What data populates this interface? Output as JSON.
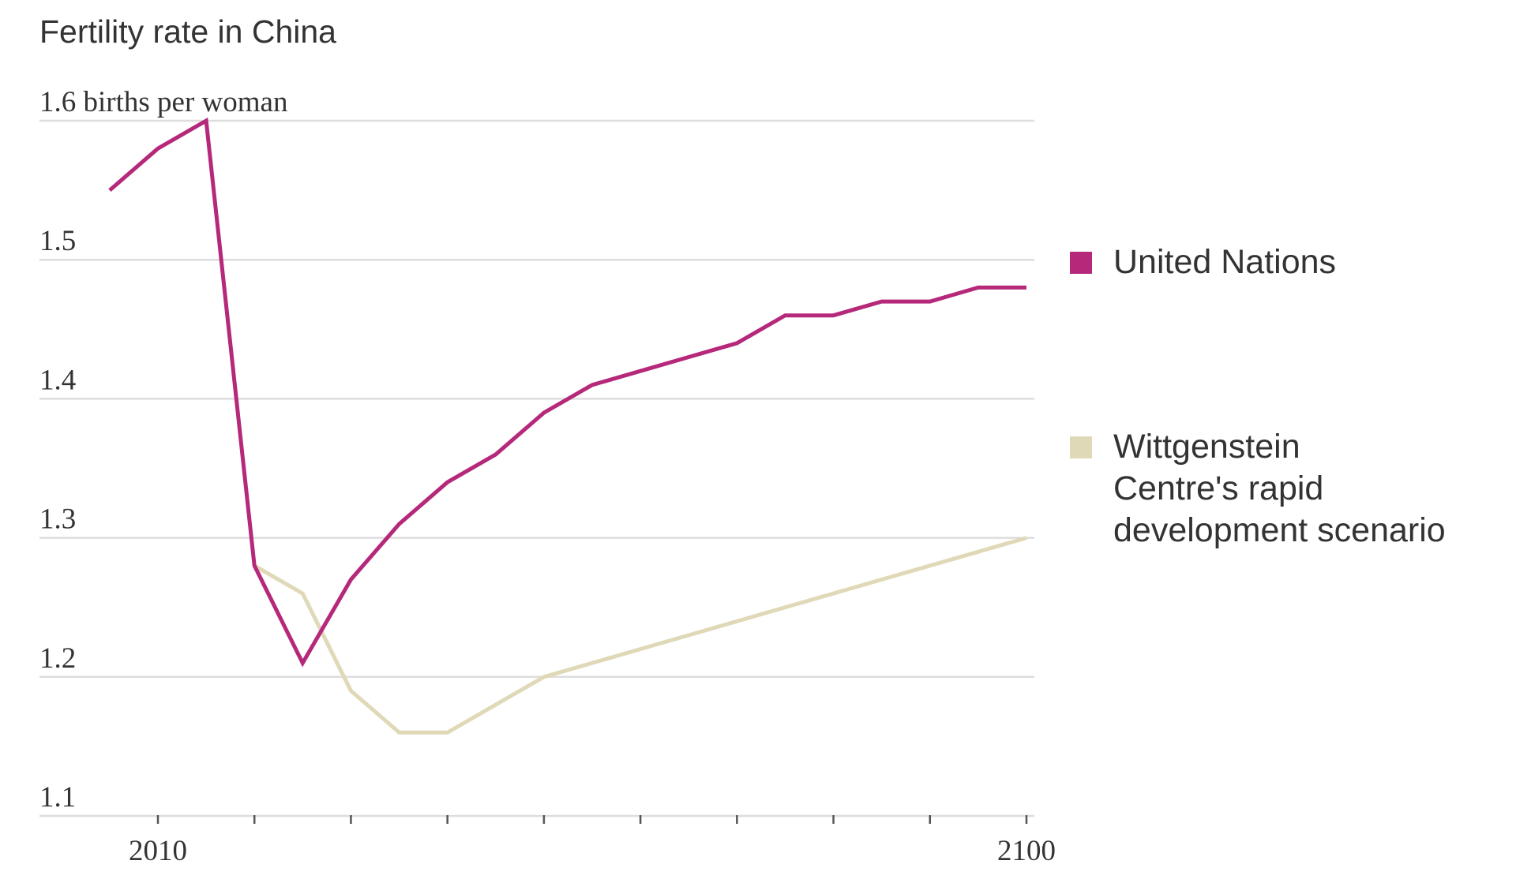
{
  "chart_data": {
    "type": "line",
    "title": "Fertility rate in China",
    "ylabel_unit": "births per woman",
    "ylim": [
      1.1,
      1.6
    ],
    "yticks": [
      1.1,
      1.2,
      1.3,
      1.4,
      1.5,
      1.6
    ],
    "xlim": [
      2005,
      2100
    ],
    "xticks_minor": [
      2010,
      2020,
      2030,
      2040,
      2050,
      2060,
      2070,
      2080,
      2090,
      2100
    ],
    "xtick_labels": [
      {
        "value": 2010,
        "label": "2010"
      },
      {
        "value": 2100,
        "label": "2100"
      }
    ],
    "grid": true,
    "legend_position": "right",
    "series": [
      {
        "name": "United Nations",
        "color": "#b5287a",
        "x": [
          2005,
          2010,
          2015,
          2020,
          2025,
          2030,
          2035,
          2040,
          2045,
          2050,
          2055,
          2060,
          2065,
          2070,
          2075,
          2080,
          2085,
          2090,
          2095,
          2100
        ],
        "values": [
          1.55,
          1.58,
          1.6,
          1.28,
          1.21,
          1.27,
          1.31,
          1.34,
          1.36,
          1.39,
          1.41,
          1.42,
          1.43,
          1.44,
          1.46,
          1.46,
          1.47,
          1.47,
          1.48,
          1.48
        ]
      },
      {
        "name": "Wittgenstein Centre's rapid development scenario",
        "name_lines": [
          "Wittgenstein",
          "Centre's rapid",
          "development scenario"
        ],
        "color": "#e0d9b8",
        "x": [
          2020,
          2025,
          2030,
          2035,
          2040,
          2050,
          2100
        ],
        "values": [
          1.28,
          1.26,
          1.19,
          1.16,
          1.16,
          1.2,
          1.3
        ]
      }
    ]
  }
}
